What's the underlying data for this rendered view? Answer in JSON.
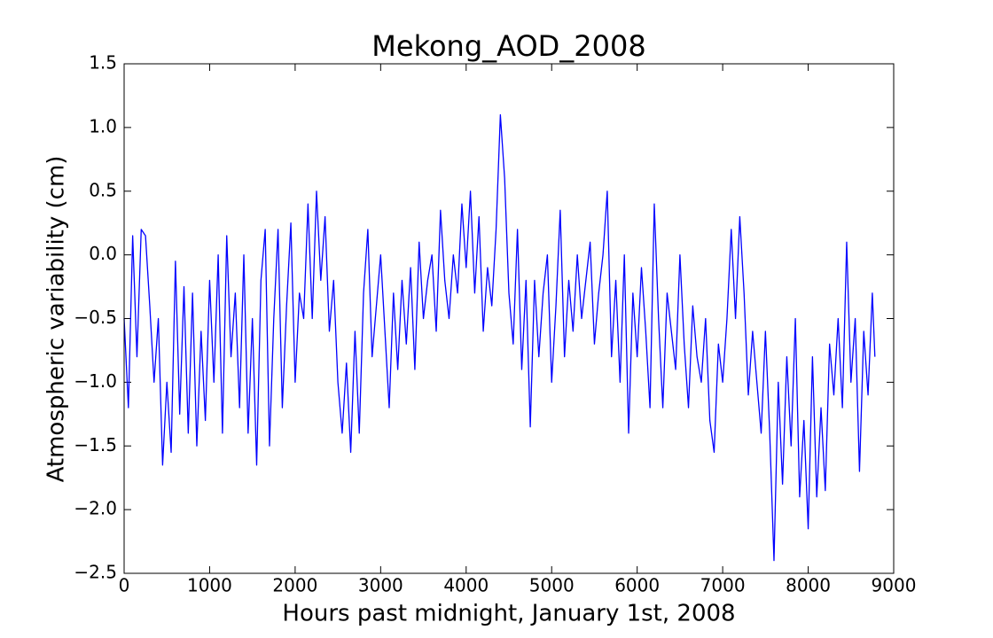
{
  "chart_data": {
    "type": "line",
    "title": "Mekong_AOD_2008",
    "xlabel": "Hours past midnight, January 1st, 2008",
    "ylabel": "Atmospheric variability (cm)",
    "xlim": [
      0,
      9000
    ],
    "ylim": [
      -2.5,
      1.5
    ],
    "xticks": [
      0,
      1000,
      2000,
      3000,
      4000,
      5000,
      6000,
      7000,
      8000,
      9000
    ],
    "yticks": [
      {
        "value": -2.5,
        "label": "−2.5"
      },
      {
        "value": -2,
        "label": "−2.0"
      },
      {
        "value": -1.5,
        "label": "−1.5"
      },
      {
        "value": -1,
        "label": "−1.0"
      },
      {
        "value": -0.5,
        "label": "−0.5"
      },
      {
        "value": 0,
        "label": "0.0"
      },
      0.5,
      {
        "value": 1,
        "label": "1.0"
      },
      1.5
    ],
    "grid": false,
    "series": [
      {
        "color": "#0000ff",
        "x": [
          0,
          50,
          100,
          150,
          200,
          250,
          300,
          350,
          400,
          450,
          500,
          550,
          600,
          650,
          700,
          750,
          800,
          850,
          900,
          950,
          1000,
          1050,
          1100,
          1150,
          1200,
          1250,
          1300,
          1350,
          1400,
          1450,
          1500,
          1550,
          1600,
          1650,
          1700,
          1750,
          1800,
          1850,
          1900,
          1950,
          2000,
          2050,
          2100,
          2150,
          2200,
          2250,
          2300,
          2350,
          2400,
          2450,
          2500,
          2550,
          2600,
          2650,
          2700,
          2750,
          2800,
          2850,
          2900,
          2950,
          3000,
          3050,
          3100,
          3150,
          3200,
          3250,
          3300,
          3350,
          3400,
          3450,
          3500,
          3550,
          3600,
          3650,
          3700,
          3750,
          3800,
          3850,
          3900,
          3950,
          4000,
          4050,
          4100,
          4150,
          4200,
          4250,
          4300,
          4350,
          4400,
          4450,
          4500,
          4550,
          4600,
          4650,
          4700,
          4750,
          4800,
          4850,
          4900,
          4950,
          5000,
          5050,
          5100,
          5150,
          5200,
          5250,
          5300,
          5350,
          5400,
          5450,
          5500,
          5550,
          5600,
          5650,
          5700,
          5750,
          5800,
          5850,
          5900,
          5950,
          6000,
          6050,
          6100,
          6150,
          6200,
          6250,
          6300,
          6350,
          6400,
          6450,
          6500,
          6550,
          6600,
          6650,
          6700,
          6750,
          6800,
          6850,
          6900,
          6950,
          7000,
          7050,
          7100,
          7150,
          7200,
          7250,
          7300,
          7350,
          7400,
          7450,
          7500,
          7550,
          7600,
          7650,
          7700,
          7750,
          7800,
          7850,
          7900,
          7950,
          8000,
          8050,
          8100,
          8150,
          8200,
          8250,
          8300,
          8350,
          8400,
          8450,
          8500,
          8550,
          8600,
          8650,
          8700,
          8750,
          8780
        ],
        "values": [
          -0.5,
          -1.2,
          0.15,
          -0.8,
          0.2,
          0.15,
          -0.4,
          -1.0,
          -0.5,
          -1.65,
          -1.0,
          -1.55,
          -0.05,
          -1.25,
          -0.25,
          -1.4,
          -0.3,
          -1.5,
          -0.6,
          -1.3,
          -0.2,
          -1.0,
          0.0,
          -1.4,
          0.15,
          -0.8,
          -0.3,
          -1.2,
          0.0,
          -1.4,
          -0.5,
          -1.65,
          -0.2,
          0.2,
          -1.5,
          -0.5,
          0.2,
          -1.2,
          -0.4,
          0.25,
          -1.0,
          -0.3,
          -0.5,
          0.4,
          -0.5,
          0.5,
          -0.2,
          0.3,
          -0.6,
          -0.2,
          -1.0,
          -1.4,
          -0.85,
          -1.55,
          -0.6,
          -1.4,
          -0.3,
          0.2,
          -0.8,
          -0.4,
          0.0,
          -0.6,
          -1.2,
          -0.3,
          -0.9,
          -0.2,
          -0.7,
          -0.1,
          -0.9,
          0.1,
          -0.5,
          -0.2,
          0.0,
          -0.6,
          0.35,
          -0.2,
          -0.5,
          0.0,
          -0.3,
          0.4,
          -0.1,
          0.5,
          -0.3,
          0.3,
          -0.6,
          -0.1,
          -0.4,
          0.2,
          1.1,
          0.6,
          -0.3,
          -0.7,
          0.2,
          -0.9,
          -0.2,
          -1.35,
          -0.2,
          -0.8,
          -0.3,
          0.0,
          -1.0,
          -0.4,
          0.35,
          -0.8,
          -0.2,
          -0.6,
          0.0,
          -0.5,
          -0.2,
          0.1,
          -0.7,
          -0.3,
          0.0,
          0.5,
          -0.8,
          -0.2,
          -1.0,
          0.0,
          -1.4,
          -0.3,
          -0.8,
          -0.1,
          -0.6,
          -1.2,
          0.4,
          -0.5,
          -1.2,
          -0.3,
          -0.6,
          -0.9,
          0.0,
          -0.7,
          -1.2,
          -0.4,
          -0.8,
          -1.0,
          -0.5,
          -1.3,
          -1.55,
          -0.7,
          -1.0,
          -0.5,
          0.2,
          -0.5,
          0.3,
          -0.3,
          -1.1,
          -0.6,
          -1.0,
          -1.4,
          -0.6,
          -1.4,
          -2.4,
          -1.0,
          -1.8,
          -0.8,
          -1.5,
          -0.5,
          -1.9,
          -1.3,
          -2.15,
          -0.8,
          -1.9,
          -1.2,
          -1.85,
          -0.7,
          -1.1,
          -0.5,
          -1.2,
          0.1,
          -1.0,
          -0.5,
          -1.7,
          -0.6,
          -1.1,
          -0.3,
          -0.8
        ]
      }
    ]
  }
}
